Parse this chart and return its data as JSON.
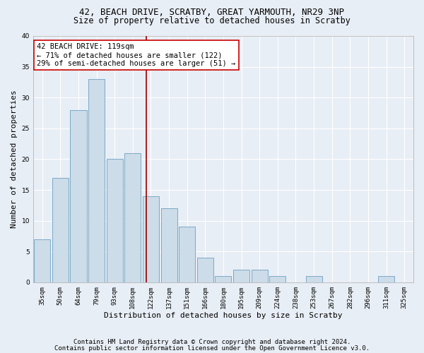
{
  "title_line1": "42, BEACH DRIVE, SCRATBY, GREAT YARMOUTH, NR29 3NP",
  "title_line2": "Size of property relative to detached houses in Scratby",
  "xlabel": "Distribution of detached houses by size in Scratby",
  "ylabel": "Number of detached properties",
  "categories": [
    "35sqm",
    "50sqm",
    "64sqm",
    "79sqm",
    "93sqm",
    "108sqm",
    "122sqm",
    "137sqm",
    "151sqm",
    "166sqm",
    "180sqm",
    "195sqm",
    "209sqm",
    "224sqm",
    "238sqm",
    "253sqm",
    "267sqm",
    "282sqm",
    "296sqm",
    "311sqm",
    "325sqm"
  ],
  "values": [
    7,
    17,
    28,
    33,
    20,
    21,
    14,
    12,
    9,
    4,
    1,
    2,
    2,
    1,
    0,
    1,
    0,
    0,
    0,
    1,
    0
  ],
  "bar_color": "#ccdce8",
  "bar_edge_color": "#7aaac8",
  "vline_color": "#990000",
  "vline_x_idx": 5.73,
  "annotation_text": "42 BEACH DRIVE: 119sqm\n← 71% of detached houses are smaller (122)\n29% of semi-detached houses are larger (51) →",
  "annotation_box_color": "#ffffff",
  "annotation_box_edge_color": "#cc0000",
  "ylim": [
    0,
    40
  ],
  "yticks": [
    0,
    5,
    10,
    15,
    20,
    25,
    30,
    35,
    40
  ],
  "footer_line1": "Contains HM Land Registry data © Crown copyright and database right 2024.",
  "footer_line2": "Contains public sector information licensed under the Open Government Licence v3.0.",
  "background_color": "#e8eef5",
  "plot_background_color": "#e8eef5",
  "grid_color": "#ffffff",
  "title1_fontsize": 9,
  "title2_fontsize": 8.5,
  "xlabel_fontsize": 8,
  "ylabel_fontsize": 8,
  "tick_fontsize": 6.5,
  "annotation_fontsize": 7.5,
  "footer_fontsize": 6.5
}
